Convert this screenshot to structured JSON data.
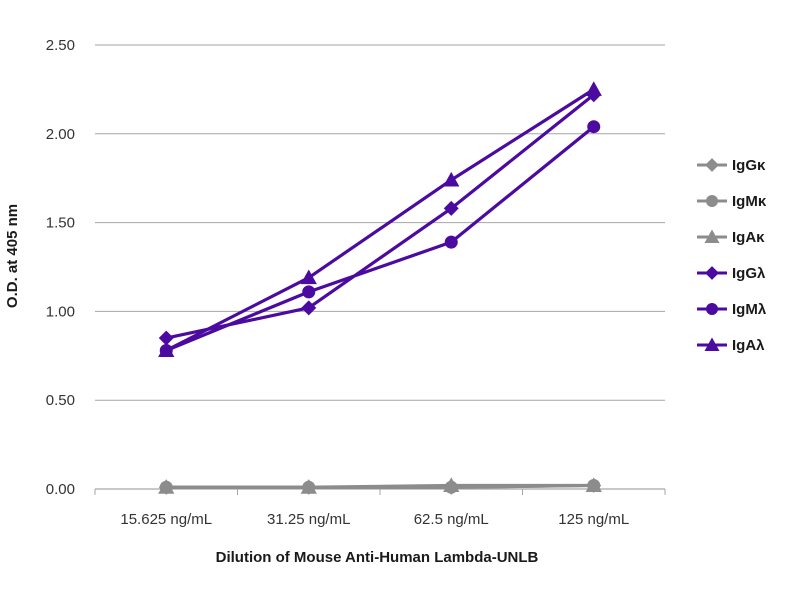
{
  "chart_data": {
    "type": "line",
    "title": "",
    "xlabel": "Dilution of Mouse Anti-Human Lambda-UNLB",
    "ylabel": "O.D. at 405 nm",
    "categories": [
      "15.625 ng/mL",
      "31.25 ng/mL",
      "62.5 ng/mL",
      "125 ng/mL"
    ],
    "ylim": [
      0,
      2.5
    ],
    "yticks": [
      "0.00",
      "0.50",
      "1.00",
      "1.50",
      "2.00",
      "2.50"
    ],
    "grid": "horizontal",
    "legend_position": "right",
    "series": [
      {
        "name": "IgGκ",
        "marker": "diamond",
        "color": "#8c8c8c",
        "values": [
          0.01,
          0.01,
          0.01,
          0.02
        ]
      },
      {
        "name": "IgMκ",
        "marker": "circle",
        "color": "#8c8c8c",
        "values": [
          0.01,
          0.01,
          0.01,
          0.02
        ]
      },
      {
        "name": "IgAκ",
        "marker": "triangle",
        "color": "#8c8c8c",
        "values": [
          0.01,
          0.01,
          0.02,
          0.02
        ]
      },
      {
        "name": "IgGλ",
        "marker": "diamond",
        "color": "#4b0aa0",
        "values": [
          0.85,
          1.02,
          1.58,
          2.22
        ]
      },
      {
        "name": "IgMλ",
        "marker": "circle",
        "color": "#4b0aa0",
        "values": [
          0.78,
          1.11,
          1.39,
          2.04
        ]
      },
      {
        "name": "IgAλ",
        "marker": "triangle",
        "color": "#4b0aa0",
        "values": [
          0.78,
          1.19,
          1.74,
          2.25
        ]
      }
    ]
  }
}
